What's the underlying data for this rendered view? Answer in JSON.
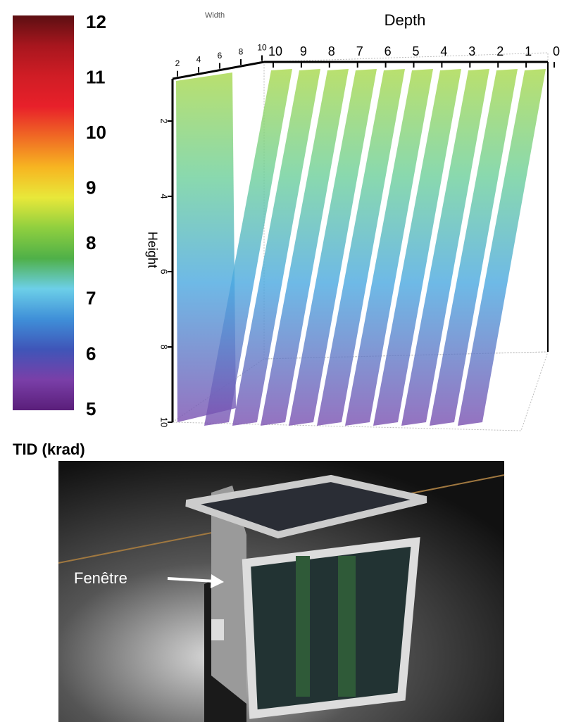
{
  "colorbar": {
    "title": "TID (krad)",
    "range": [
      5,
      12
    ],
    "ticks": [
      5,
      6,
      7,
      8,
      9,
      10,
      11,
      12
    ],
    "colors": [
      "#5a1e7a",
      "#7a3fa8",
      "#3f55b8",
      "#3f8fd8",
      "#6ccfe8",
      "#4fb048",
      "#8fcf3f",
      "#e8e83a",
      "#f7b521",
      "#f06a24",
      "#e8202a",
      "#d01d25",
      "#a8161e",
      "#5c0f12"
    ]
  },
  "plot3d": {
    "width_label": "Width",
    "depth_label": "Depth",
    "height_label": "Height",
    "depth_range": [
      10,
      0
    ],
    "depth_ticks": [
      10,
      9,
      8,
      7,
      6,
      5,
      4,
      3,
      2,
      1,
      0
    ],
    "width_range": [
      2,
      10
    ],
    "width_ticks": [
      2,
      4,
      6,
      8,
      10
    ],
    "height_range": [
      2,
      10
    ],
    "height_ticks": [
      2,
      4,
      6,
      8,
      10
    ]
  },
  "photo": {
    "annotation": "Fenêtre"
  }
}
